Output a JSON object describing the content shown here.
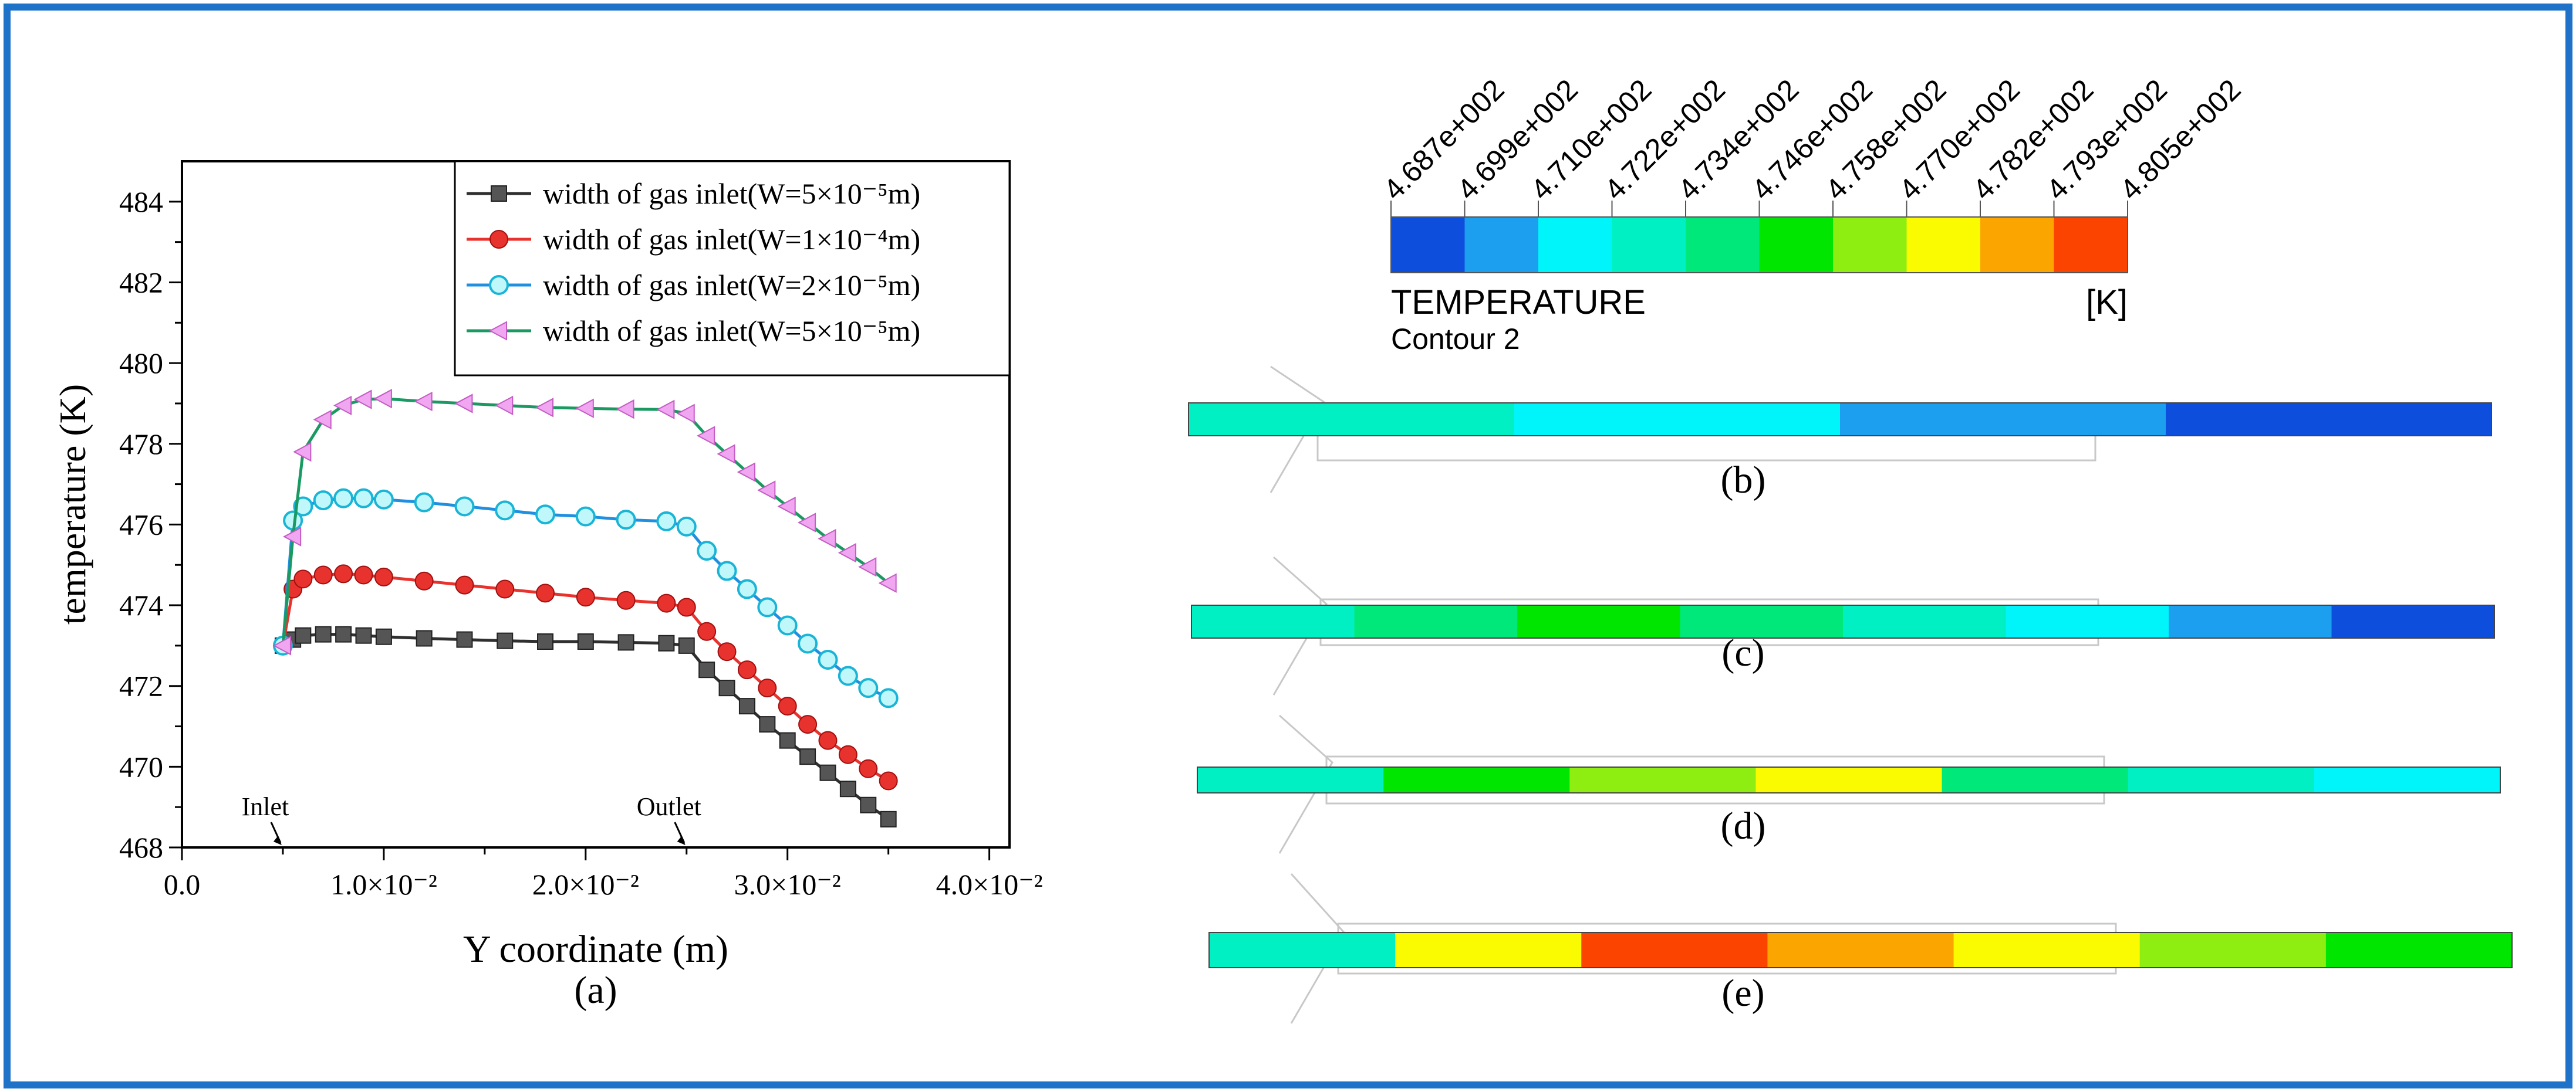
{
  "chart_data": [
    {
      "type": "line",
      "panel_label": "(a)",
      "xlabel": "Y coordinate (m)",
      "ylabel": "temperature (K)",
      "xlim": [
        0.0,
        0.041
      ],
      "ylim": [
        468,
        485
      ],
      "xticks": [
        {
          "value": 0.0,
          "label": "0.0"
        },
        {
          "value": 0.01,
          "label": "1.0×10⁻²"
        },
        {
          "value": 0.02,
          "label": "2.0×10⁻²"
        },
        {
          "value": 0.03,
          "label": "3.0×10⁻²"
        },
        {
          "value": 0.04,
          "label": "4.0×10⁻²"
        }
      ],
      "yticks": [
        468,
        470,
        472,
        474,
        476,
        478,
        480,
        482,
        484
      ],
      "annotations": [
        {
          "text": "Inlet",
          "x": 0.005,
          "y": 468
        },
        {
          "text": "Outlet",
          "x": 0.025,
          "y": 468
        }
      ],
      "legend_position": "top-right",
      "series": [
        {
          "name": "width of gas inlet(W=5×10⁻⁵m)",
          "color": "#2f2f2f",
          "marker": "square",
          "x": [
            0.005,
            0.0055,
            0.006,
            0.007,
            0.008,
            0.009,
            0.01,
            0.012,
            0.014,
            0.016,
            0.018,
            0.02,
            0.022,
            0.024,
            0.025,
            0.026,
            0.027,
            0.028,
            0.029,
            0.03,
            0.031,
            0.032,
            0.033,
            0.034,
            0.035
          ],
          "y": [
            473.0,
            473.15,
            473.25,
            473.28,
            473.28,
            473.25,
            473.22,
            473.18,
            473.15,
            473.12,
            473.1,
            473.1,
            473.08,
            473.06,
            473.0,
            472.4,
            471.95,
            471.5,
            471.05,
            470.65,
            470.25,
            469.85,
            469.45,
            469.05,
            468.7
          ]
        },
        {
          "name": "width of gas inlet(W=1×10⁻⁴m)",
          "color": "#e8322d",
          "marker": "circle",
          "x": [
            0.005,
            0.0055,
            0.006,
            0.007,
            0.008,
            0.009,
            0.01,
            0.012,
            0.014,
            0.016,
            0.018,
            0.02,
            0.022,
            0.024,
            0.025,
            0.026,
            0.027,
            0.028,
            0.029,
            0.03,
            0.031,
            0.032,
            0.033,
            0.034,
            0.035
          ],
          "y": [
            473.0,
            474.4,
            474.65,
            474.75,
            474.78,
            474.75,
            474.7,
            474.6,
            474.5,
            474.4,
            474.3,
            474.2,
            474.12,
            474.05,
            473.95,
            473.35,
            472.85,
            472.4,
            471.95,
            471.5,
            471.05,
            470.65,
            470.3,
            469.95,
            469.65
          ]
        },
        {
          "name": "width of gas inlet(W=2×10⁻⁵m)",
          "color": "#1f8fe0",
          "marker": "hexagon",
          "x": [
            0.005,
            0.0055,
            0.006,
            0.007,
            0.008,
            0.009,
            0.01,
            0.012,
            0.014,
            0.016,
            0.018,
            0.02,
            0.022,
            0.024,
            0.025,
            0.026,
            0.027,
            0.028,
            0.029,
            0.03,
            0.031,
            0.032,
            0.033,
            0.034,
            0.035
          ],
          "y": [
            473.0,
            476.1,
            476.45,
            476.6,
            476.65,
            476.65,
            476.62,
            476.55,
            476.45,
            476.35,
            476.25,
            476.2,
            476.12,
            476.08,
            475.95,
            475.35,
            474.85,
            474.4,
            473.95,
            473.5,
            473.05,
            472.65,
            472.25,
            471.95,
            471.7
          ]
        },
        {
          "name": "width of gas inlet(W=5×10⁻⁵m)",
          "color": "#1a9a62",
          "marker": "triangle-left",
          "x": [
            0.005,
            0.0055,
            0.006,
            0.007,
            0.008,
            0.009,
            0.01,
            0.012,
            0.014,
            0.016,
            0.018,
            0.02,
            0.022,
            0.024,
            0.025,
            0.026,
            0.027,
            0.028,
            0.029,
            0.03,
            0.031,
            0.032,
            0.033,
            0.034,
            0.035
          ],
          "y": [
            473.0,
            475.7,
            477.8,
            478.6,
            478.95,
            479.1,
            479.12,
            479.05,
            479.0,
            478.95,
            478.9,
            478.88,
            478.86,
            478.85,
            478.75,
            478.2,
            477.75,
            477.3,
            476.85,
            476.45,
            476.05,
            475.65,
            475.3,
            474.95,
            474.55
          ]
        }
      ]
    },
    {
      "type": "heatmap",
      "legend": {
        "title": "TEMPERATURE",
        "subtitle": "Contour 2",
        "unit": "[K]",
        "tick_labels": [
          "4.687e+002",
          "4.699e+002",
          "4.710e+002",
          "4.722e+002",
          "4.734e+002",
          "4.746e+002",
          "4.758e+002",
          "4.770e+002",
          "4.782e+002",
          "4.793e+002",
          "4.805e+002"
        ],
        "colors": [
          "#0d4fdc",
          "#1d9ff0",
          "#00f5fb",
          "#00f0c3",
          "#00e87a",
          "#00e600",
          "#8eed11",
          "#fafa00",
          "#faa500",
          "#fa4400"
        ]
      },
      "panels": [
        {
          "label": "(b)",
          "band_colors": [
            "#00f0c3",
            "#00f5fb",
            "#1d9ff0",
            "#0d4fdc"
          ]
        },
        {
          "label": "(c)",
          "band_colors": [
            "#00f0c3",
            "#00e87a",
            "#00e600",
            "#00e87a",
            "#00f0c3",
            "#00f5fb",
            "#1d9ff0",
            "#0d4fdc"
          ]
        },
        {
          "label": "(d)",
          "band_colors": [
            "#00f0c3",
            "#00e600",
            "#8eed11",
            "#fafa00",
            "#00e87a",
            "#00f0c3",
            "#00f5fb"
          ]
        },
        {
          "label": "(e)",
          "band_colors": [
            "#00f0c3",
            "#fafa00",
            "#fa4400",
            "#faa500",
            "#fafa00",
            "#8eed11",
            "#00e600"
          ]
        }
      ]
    }
  ]
}
